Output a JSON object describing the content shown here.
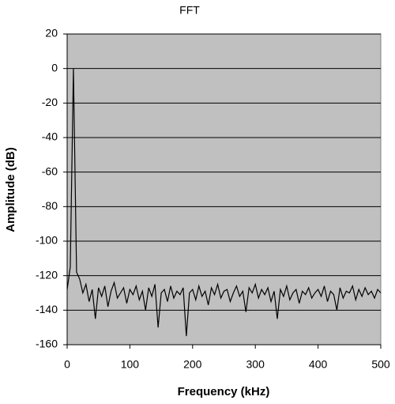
{
  "chart_data": {
    "type": "line",
    "title": "FFT",
    "x_label": "Frequency (kHz)",
    "y_label": "Amplitude (dB)",
    "xlim": [
      0,
      500
    ],
    "xticks": [
      0,
      100,
      200,
      300,
      400,
      500
    ],
    "ylim": [
      -160,
      20
    ],
    "yticks": [
      -160,
      -140,
      -120,
      -100,
      -80,
      -60,
      -40,
      -20,
      0,
      20
    ],
    "grid": true,
    "background": "#c0c0c0",
    "series": [
      {
        "color": "#000000",
        "x": [
          0,
          5,
          10,
          15,
          20,
          25,
          30,
          35,
          40,
          45,
          50,
          55,
          60,
          65,
          70,
          75,
          80,
          85,
          90,
          95,
          100,
          105,
          110,
          115,
          120,
          125,
          130,
          135,
          140,
          145,
          150,
          155,
          160,
          165,
          170,
          175,
          180,
          185,
          190,
          195,
          200,
          205,
          210,
          215,
          220,
          225,
          230,
          235,
          240,
          245,
          250,
          255,
          260,
          265,
          270,
          275,
          280,
          285,
          290,
          295,
          300,
          305,
          310,
          315,
          320,
          325,
          330,
          335,
          340,
          345,
          350,
          355,
          360,
          365,
          370,
          375,
          380,
          385,
          390,
          395,
          400,
          405,
          410,
          415,
          420,
          425,
          430,
          435,
          440,
          445,
          450,
          455,
          460,
          465,
          470,
          475,
          480,
          485,
          490,
          495,
          500
        ],
        "values": [
          -128,
          -115,
          0,
          -118,
          -122,
          -130,
          -125,
          -135,
          -128,
          -145,
          -127,
          -132,
          -126,
          -138,
          -129,
          -124,
          -133,
          -130,
          -127,
          -136,
          -128,
          -131,
          -126,
          -134,
          -129,
          -140,
          -127,
          -132,
          -125,
          -150,
          -130,
          -128,
          -135,
          -126,
          -133,
          -129,
          -131,
          -127,
          -155,
          -130,
          -128,
          -134,
          -126,
          -132,
          -129,
          -137,
          -127,
          -131,
          -125,
          -133,
          -129,
          -128,
          -135,
          -130,
          -126,
          -132,
          -129,
          -141,
          -127,
          -130,
          -125,
          -133,
          -128,
          -131,
          -127,
          -135,
          -129,
          -145,
          -128,
          -132,
          -126,
          -134,
          -130,
          -128,
          -136,
          -129,
          -131,
          -127,
          -133,
          -130,
          -128,
          -132,
          -126,
          -135,
          -129,
          -131,
          -140,
          -127,
          -133,
          -129,
          -130,
          -126,
          -134,
          -128,
          -132,
          -127,
          -131,
          -129,
          -133,
          -128,
          -130
        ]
      }
    ]
  }
}
